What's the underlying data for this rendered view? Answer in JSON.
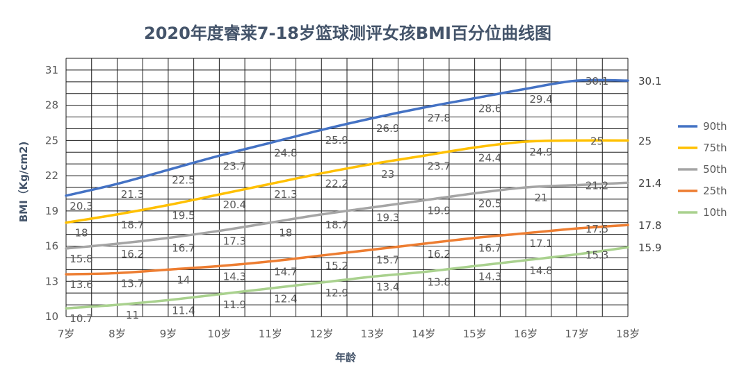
{
  "chart_data": {
    "type": "line",
    "title": "2020年度睿莱7-18岁篮球测评女孩BMI百分位曲线图",
    "xlabel": "年龄",
    "ylabel": "BMI（Kg/cm2)",
    "ylim": [
      10,
      32
    ],
    "yticks": [
      "10",
      "13",
      "16",
      "19",
      "22",
      "25",
      "28",
      "31"
    ],
    "categories": [
      "7岁",
      "8岁",
      "9岁",
      "10岁",
      "11岁",
      "12岁",
      "13岁",
      "14岁",
      "15岁",
      "16岁",
      "17岁",
      "18岁"
    ],
    "grid": true,
    "legend_position": "right",
    "series": [
      {
        "name": "90th",
        "color": "#4472c4",
        "values": [
          20.3,
          21.3,
          22.5,
          23.7,
          24.8,
          25.9,
          26.9,
          27.8,
          28.6,
          29.4,
          30.1,
          30.1
        ],
        "labels": [
          "20.3",
          "21.3",
          "22.5",
          "23.7",
          "24.8",
          "25.9",
          "26.9",
          "27.8",
          "28.6",
          "29.4",
          "30.1",
          "30.1"
        ]
      },
      {
        "name": "75th",
        "color": "#ffc000",
        "values": [
          18,
          18.7,
          19.5,
          20.4,
          21.3,
          22.2,
          23,
          23.7,
          24.4,
          24.9,
          25,
          25
        ],
        "labels": [
          "18",
          "18.7",
          "19.5",
          "20.4",
          "21.3",
          "22.2",
          "23",
          "23.7",
          "24.4",
          "24.9",
          "25",
          "25"
        ]
      },
      {
        "name": "50th",
        "color": "#a5a5a5",
        "values": [
          15.8,
          16.2,
          16.7,
          17.3,
          18,
          18.7,
          19.3,
          19.9,
          20.5,
          21,
          21.2,
          21.4
        ],
        "labels": [
          "15.8",
          "16.2",
          "16.7",
          "17.3",
          "18",
          "18.7",
          "19.3",
          "19.9",
          "20.5",
          "21",
          "21.2",
          "21.4"
        ]
      },
      {
        "name": "25th",
        "color": "#ed7d31",
        "values": [
          13.6,
          13.7,
          14,
          14.3,
          14.7,
          15.2,
          15.7,
          16.2,
          16.7,
          17.1,
          17.5,
          17.8
        ],
        "labels": [
          "13.6",
          "13.7",
          "14",
          "14.3",
          "14.7",
          "15.2",
          "15.7",
          "16.2",
          "16.7",
          "17.1",
          "17.5",
          "17.8"
        ]
      },
      {
        "name": "10th",
        "color": "#a9d18e",
        "values": [
          10.7,
          11,
          11.4,
          11.9,
          12.4,
          12.9,
          13.4,
          13.8,
          14.3,
          14.8,
          15.3,
          15.9
        ],
        "labels": [
          "10.7",
          "11",
          "11.4",
          "11.9",
          "12.4",
          "12.9",
          "13.4",
          "13.8",
          "14.3",
          "14.8",
          "15.3",
          "15.9"
        ]
      }
    ]
  }
}
